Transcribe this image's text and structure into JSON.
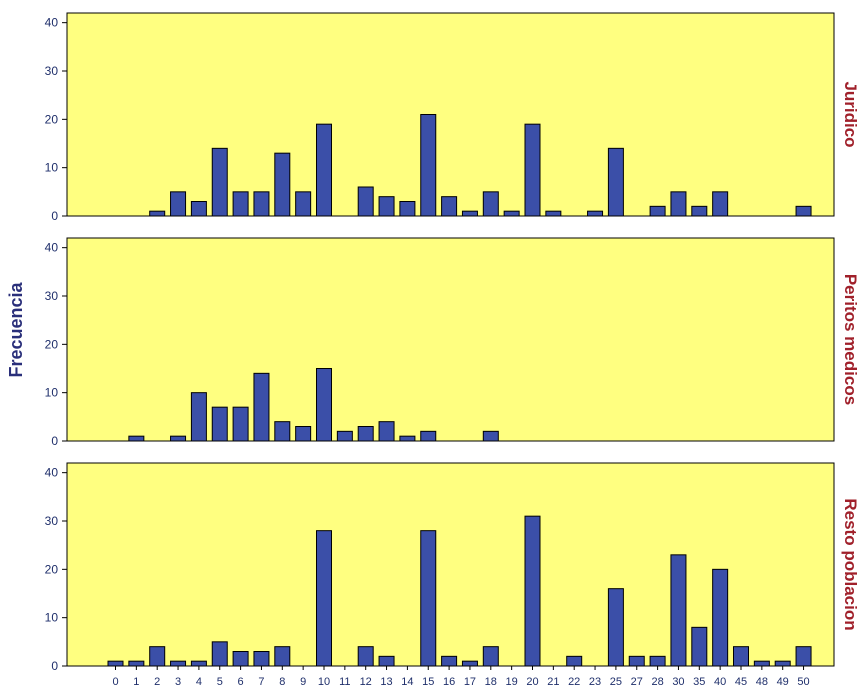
{
  "chart_data": {
    "type": "bar",
    "ylabel": "Frecuencia",
    "ylim": [
      0,
      42
    ],
    "yticks": [
      0,
      10,
      20,
      30,
      40
    ],
    "categories": [
      "0",
      "1",
      "2",
      "3",
      "4",
      "5",
      "6",
      "7",
      "8",
      "9",
      "10",
      "11",
      "12",
      "13",
      "14",
      "15",
      "16",
      "17",
      "18",
      "19",
      "20",
      "21",
      "22",
      "23",
      "25",
      "27",
      "28",
      "30",
      "35",
      "40",
      "45",
      "48",
      "49",
      "50"
    ],
    "colors": {
      "panel_bg": "#ffff80",
      "bar_fill": "#3b4fa8",
      "bar_stroke": "#000000",
      "facet_label": "#a0202a",
      "axis_text": "#1f2f6b"
    },
    "series": [
      {
        "name": "Juridico",
        "values": [
          0,
          0,
          1,
          5,
          3,
          14,
          5,
          5,
          13,
          5,
          19,
          0,
          6,
          4,
          3,
          21,
          4,
          1,
          5,
          1,
          19,
          1,
          0,
          1,
          14,
          0,
          2,
          5,
          2,
          5,
          0,
          0,
          0,
          2
        ]
      },
      {
        "name": "Peritos medicos",
        "values": [
          0,
          1,
          0,
          1,
          10,
          7,
          7,
          14,
          4,
          3,
          15,
          2,
          3,
          4,
          1,
          2,
          0,
          0,
          2,
          0,
          0,
          0,
          0,
          0,
          0,
          0,
          0,
          0,
          0,
          0,
          0,
          0,
          0,
          0
        ]
      },
      {
        "name": "Resto poblacion",
        "values": [
          1,
          1,
          4,
          1,
          1,
          5,
          3,
          3,
          4,
          0,
          28,
          0,
          4,
          2,
          0,
          28,
          2,
          1,
          4,
          0,
          31,
          0,
          2,
          0,
          16,
          2,
          2,
          23,
          8,
          20,
          4,
          1,
          1,
          4
        ]
      }
    ]
  }
}
